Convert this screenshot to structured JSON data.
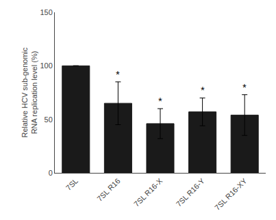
{
  "chart_data": {
    "type": "bar",
    "categories": [
      "7SL",
      "7SL R16",
      "7SL R16-X",
      "7SL R16-Y",
      "7SL R16-XY"
    ],
    "values": [
      100,
      65,
      46,
      57,
      54
    ],
    "errors": [
      0,
      20,
      14,
      13,
      19
    ],
    "color": "#1a1a1a",
    "ylabel": "Relative HCV sub-genomic\nRNA replication level (%)",
    "ylim": [
      0,
      150
    ],
    "yticks": [
      0,
      50,
      100,
      150
    ],
    "grid": false,
    "annotations": [
      {
        "category": "7SL R16",
        "text": "*"
      },
      {
        "category": "7SL R16-X",
        "text": "*"
      },
      {
        "category": "7SL R16-Y",
        "text": "*"
      },
      {
        "category": "7SL R16-XY",
        "text": "*"
      }
    ]
  }
}
